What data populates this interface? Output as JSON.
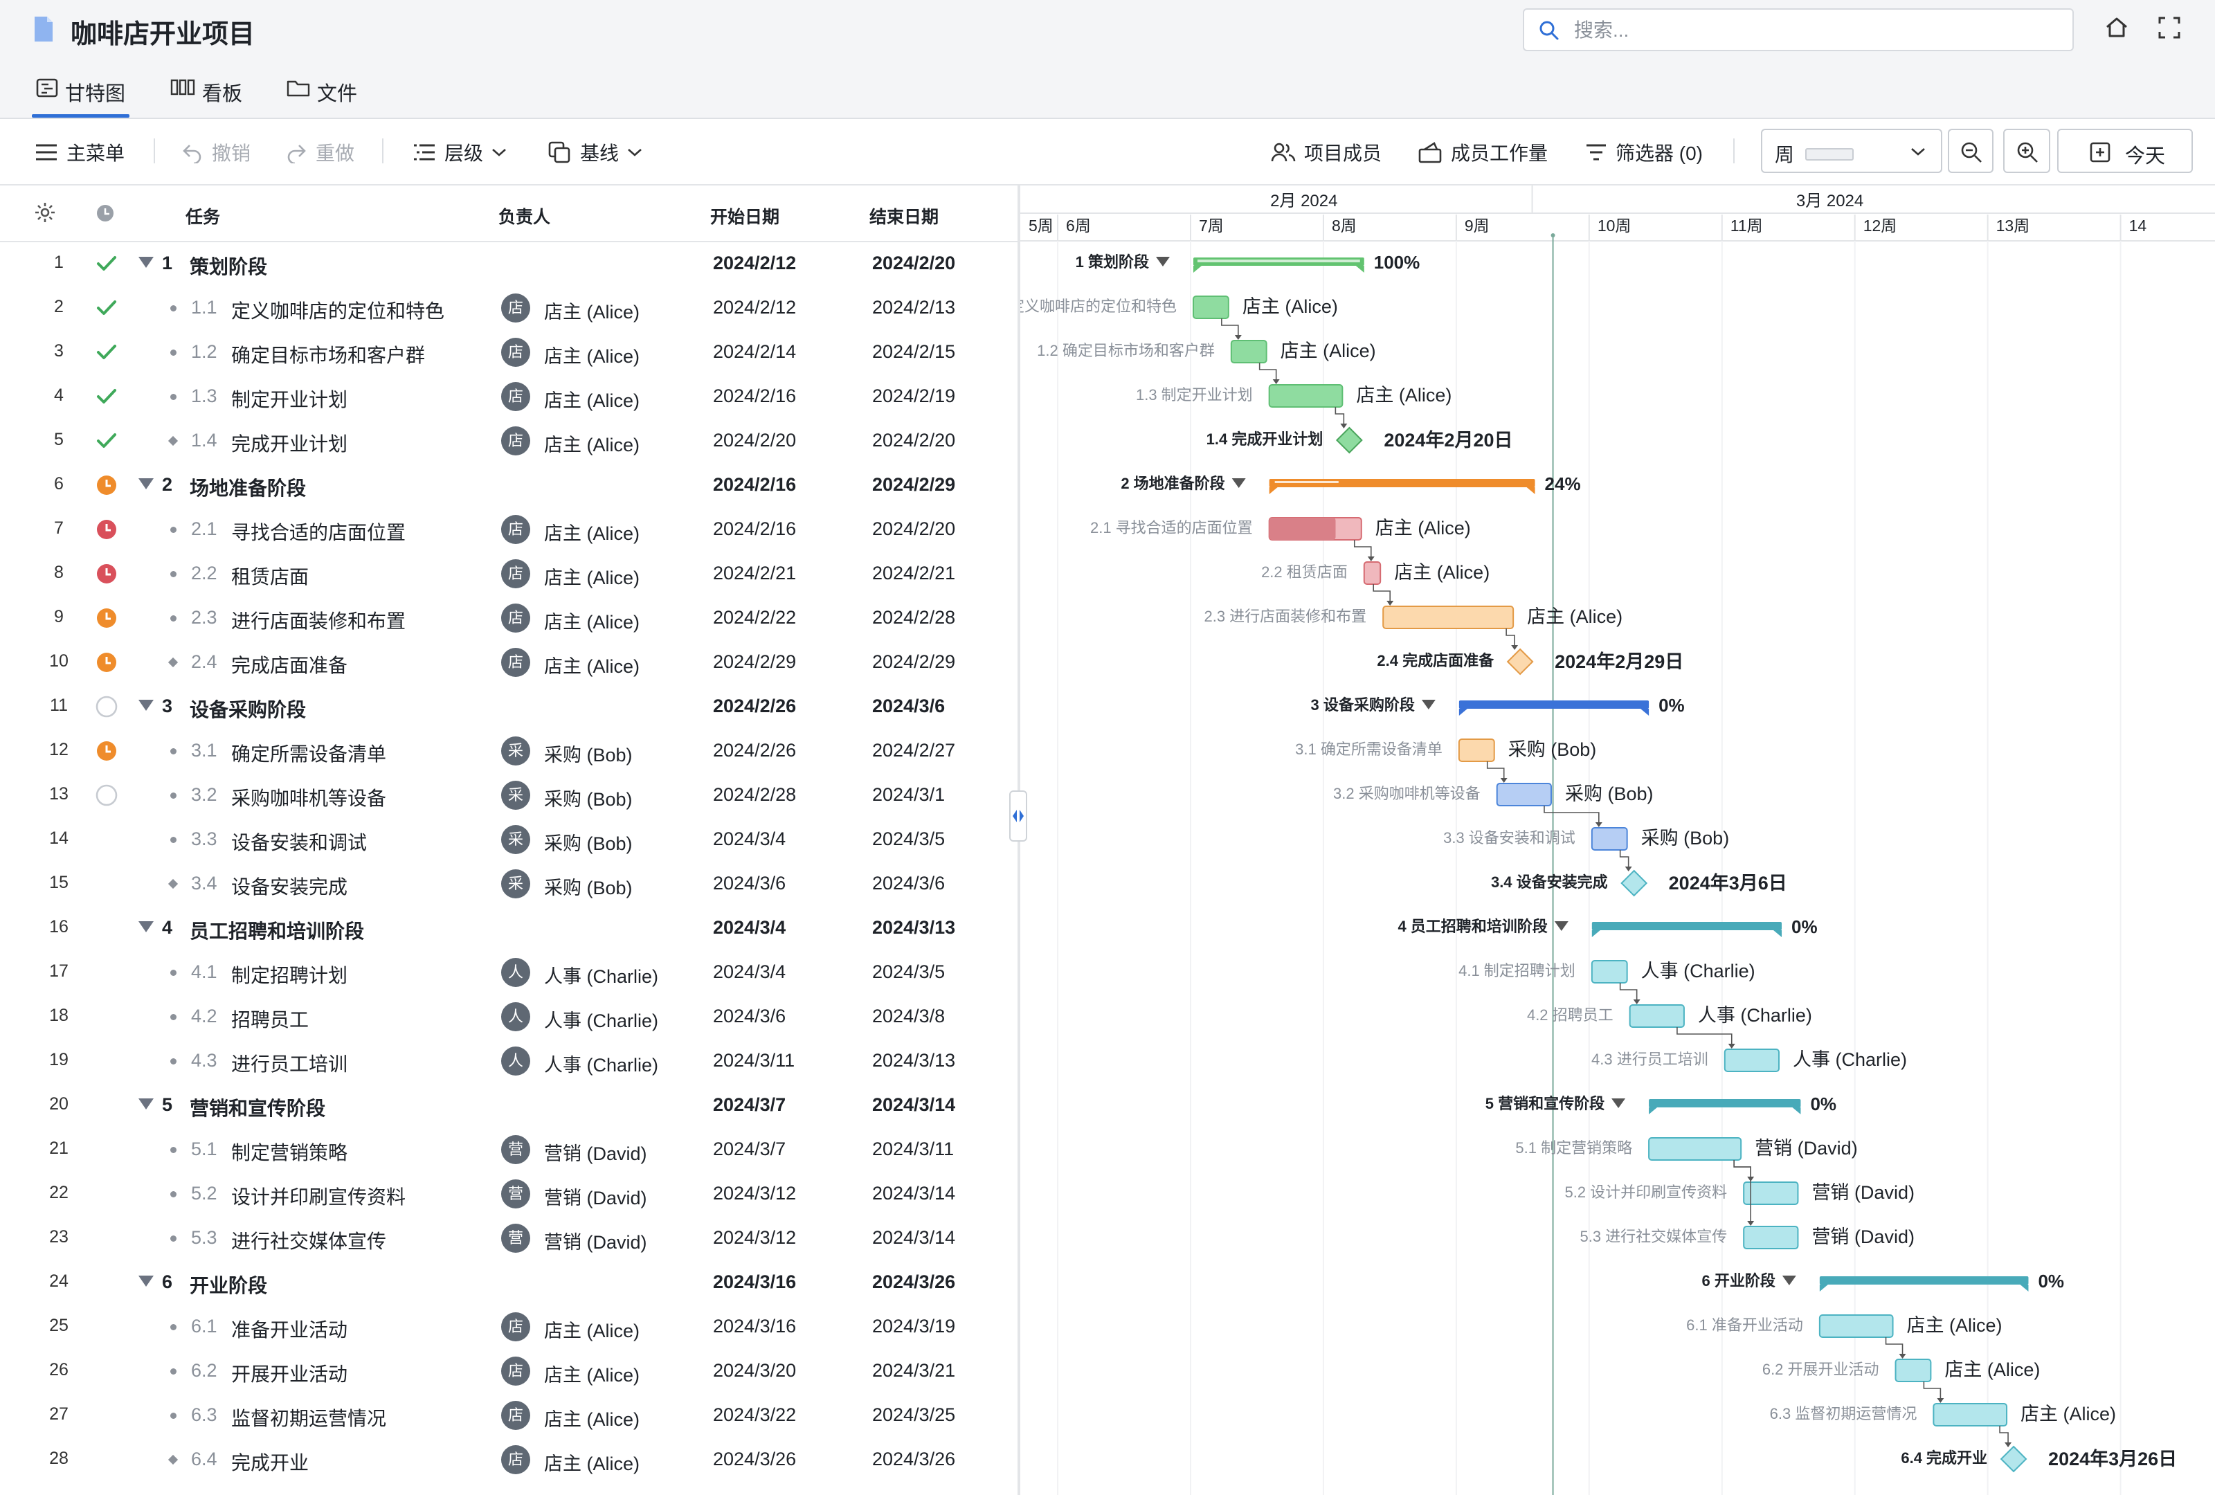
{
  "app": {
    "title": "咖啡店开业项目"
  },
  "search": {
    "placeholder": "搜索..."
  },
  "tabs": [
    {
      "label": "甘特图",
      "icon": "gantt-icon",
      "active": true
    },
    {
      "label": "看板",
      "icon": "kanban-icon",
      "active": false
    },
    {
      "label": "文件",
      "icon": "folder-icon",
      "active": false
    }
  ],
  "toolbar": {
    "menu": "主菜单",
    "undo": "撤销",
    "redo": "重做",
    "level": "层级",
    "baseline": "基线",
    "members": "项目成员",
    "workload": "成员工作量",
    "filter": "筛选器 (0)",
    "scale": "周",
    "today": "今天"
  },
  "columns": {
    "task": "任务",
    "owner": "负责人",
    "start": "开始日期",
    "end": "结束日期"
  },
  "timeline": {
    "months": [
      {
        "label": "2月 2024"
      },
      {
        "label": "3月 2024"
      }
    ],
    "weeks": [
      "5周",
      "6周",
      "7周",
      "8周",
      "9周",
      "10周",
      "11周",
      "12周",
      "13周",
      "14"
    ]
  },
  "colors": {
    "green": "#62c370",
    "green_light": "#8fdca0",
    "orange": "#ef8c2b",
    "orange_light": "#fcd9ad",
    "red": "#d66b72",
    "red_light": "#f0b8bd",
    "blue": "#3a72d8",
    "blue_light": "#b6cef4",
    "teal": "#48aab9",
    "teal_light": "#b3e6ec",
    "today_line": "#7aa99a"
  },
  "tasks": [
    {
      "id": 1,
      "num": "1",
      "name": "策划阶段",
      "group": true,
      "status": "done",
      "start": "2024/2/12",
      "end": "2024/2/20",
      "pct": "100%"
    },
    {
      "id": 2,
      "num": "1.1",
      "name": "定义咖啡店的定位和特色",
      "status": "done",
      "owner": "店主 (Alice)",
      "avatar": "店",
      "start": "2024/2/12",
      "end": "2024/2/13",
      "bar_label": "定义咖啡店的定位和特色"
    },
    {
      "id": 3,
      "num": "1.2",
      "name": "确定目标市场和客户群",
      "status": "done",
      "owner": "店主 (Alice)",
      "avatar": "店",
      "start": "2024/2/14",
      "end": "2024/2/15"
    },
    {
      "id": 4,
      "num": "1.3",
      "name": "制定开业计划",
      "status": "done",
      "owner": "店主 (Alice)",
      "avatar": "店",
      "start": "2024/2/16",
      "end": "2024/2/19"
    },
    {
      "id": 5,
      "num": "1.4",
      "name": "完成开业计划",
      "milestone": true,
      "status": "done",
      "owner": "店主 (Alice)",
      "avatar": "店",
      "start": "2024/2/20",
      "end": "2024/2/20",
      "milestone_label": "2024年2月20日"
    },
    {
      "id": 6,
      "num": "2",
      "name": "场地准备阶段",
      "group": true,
      "status": "inprogress",
      "start": "2024/2/16",
      "end": "2024/2/29",
      "pct": "24%"
    },
    {
      "id": 7,
      "num": "2.1",
      "name": "寻找合适的店面位置",
      "status": "late",
      "owner": "店主 (Alice)",
      "avatar": "店",
      "start": "2024/2/16",
      "end": "2024/2/20"
    },
    {
      "id": 8,
      "num": "2.2",
      "name": "租赁店面",
      "status": "late",
      "owner": "店主 (Alice)",
      "avatar": "店",
      "start": "2024/2/21",
      "end": "2024/2/21"
    },
    {
      "id": 9,
      "num": "2.3",
      "name": "进行店面装修和布置",
      "status": "inprogress",
      "owner": "店主 (Alice)",
      "avatar": "店",
      "start": "2024/2/22",
      "end": "2024/2/28"
    },
    {
      "id": 10,
      "num": "2.4",
      "name": "完成店面准备",
      "milestone": true,
      "status": "inprogress",
      "owner": "店主 (Alice)",
      "avatar": "店",
      "start": "2024/2/29",
      "end": "2024/2/29",
      "milestone_label": "2024年2月29日"
    },
    {
      "id": 11,
      "num": "3",
      "name": "设备采购阶段",
      "group": true,
      "status": "notstarted",
      "start": "2024/2/26",
      "end": "2024/3/6",
      "pct": "0%"
    },
    {
      "id": 12,
      "num": "3.1",
      "name": "确定所需设备清单",
      "status": "inprogress",
      "owner": "采购 (Bob)",
      "avatar": "采",
      "start": "2024/2/26",
      "end": "2024/2/27"
    },
    {
      "id": 13,
      "num": "3.2",
      "name": "采购咖啡机等设备",
      "status": "notstarted",
      "owner": "采购 (Bob)",
      "avatar": "采",
      "start": "2024/2/28",
      "end": "2024/3/1"
    },
    {
      "id": 14,
      "num": "3.3",
      "name": "设备安装和调试",
      "owner": "采购 (Bob)",
      "avatar": "采",
      "start": "2024/3/4",
      "end": "2024/3/5"
    },
    {
      "id": 15,
      "num": "3.4",
      "name": "设备安装完成",
      "milestone": true,
      "owner": "采购 (Bob)",
      "avatar": "采",
      "start": "2024/3/6",
      "end": "2024/3/6",
      "milestone_label": "2024年3月6日"
    },
    {
      "id": 16,
      "num": "4",
      "name": "员工招聘和培训阶段",
      "group": true,
      "start": "2024/3/4",
      "end": "2024/3/13",
      "pct": "0%"
    },
    {
      "id": 17,
      "num": "4.1",
      "name": "制定招聘计划",
      "owner": "人事 (Charlie)",
      "avatar": "人",
      "start": "2024/3/4",
      "end": "2024/3/5"
    },
    {
      "id": 18,
      "num": "4.2",
      "name": "招聘员工",
      "owner": "人事 (Charlie)",
      "avatar": "人",
      "start": "2024/3/6",
      "end": "2024/3/8"
    },
    {
      "id": 19,
      "num": "4.3",
      "name": "进行员工培训",
      "owner": "人事 (Charlie)",
      "avatar": "人",
      "start": "2024/3/11",
      "end": "2024/3/13"
    },
    {
      "id": 20,
      "num": "5",
      "name": "营销和宣传阶段",
      "group": true,
      "start": "2024/3/7",
      "end": "2024/3/14",
      "pct": "0%"
    },
    {
      "id": 21,
      "num": "5.1",
      "name": "制定营销策略",
      "owner": "营销 (David)",
      "avatar": "营",
      "start": "2024/3/7",
      "end": "2024/3/11"
    },
    {
      "id": 22,
      "num": "5.2",
      "name": "设计并印刷宣传资料",
      "owner": "营销 (David)",
      "avatar": "营",
      "start": "2024/3/12",
      "end": "2024/3/14"
    },
    {
      "id": 23,
      "num": "5.3",
      "name": "进行社交媒体宣传",
      "owner": "营销 (David)",
      "avatar": "营",
      "start": "2024/3/12",
      "end": "2024/3/14"
    },
    {
      "id": 24,
      "num": "6",
      "name": "开业阶段",
      "group": true,
      "start": "2024/3/16",
      "end": "2024/3/26",
      "pct": "0%"
    },
    {
      "id": 25,
      "num": "6.1",
      "name": "准备开业活动",
      "owner": "店主 (Alice)",
      "avatar": "店",
      "start": "2024/3/16",
      "end": "2024/3/19"
    },
    {
      "id": 26,
      "num": "6.2",
      "name": "开展开业活动",
      "owner": "店主 (Alice)",
      "avatar": "店",
      "start": "2024/3/20",
      "end": "2024/3/21"
    },
    {
      "id": 27,
      "num": "6.3",
      "name": "监督初期运营情况",
      "owner": "店主 (Alice)",
      "avatar": "店",
      "start": "2024/3/22",
      "end": "2024/3/25"
    },
    {
      "id": 28,
      "num": "6.4",
      "name": "完成开业",
      "milestone": true,
      "owner": "店主 (Alice)",
      "avatar": "店",
      "start": "2024/3/26",
      "end": "2024/3/26",
      "milestone_label": "2024年3月26日"
    }
  ]
}
